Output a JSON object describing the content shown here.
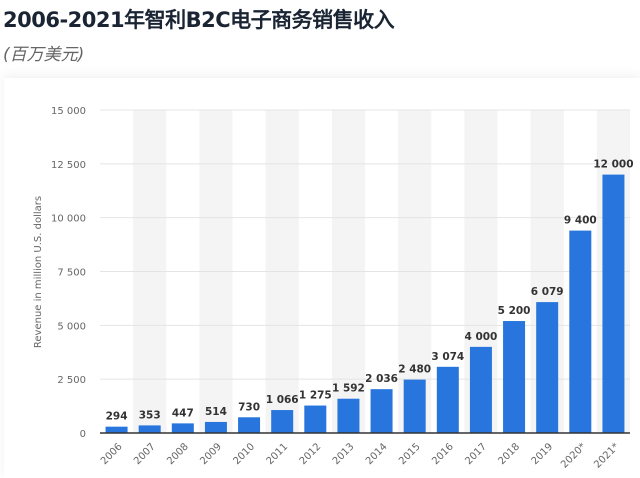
{
  "header": {
    "title": "2006-2021年智利B2C电子商务销售收入",
    "subtitle": "(百万美元)"
  },
  "chart_data": {
    "type": "bar",
    "title": "2006-2021年智利B2C电子商务销售收入",
    "subtitle": "(百万美元)",
    "xlabel": "",
    "ylabel": "Revenue in million U.S. dollars",
    "ylim": [
      0,
      15000
    ],
    "yticks": [
      0,
      2500,
      5000,
      7500,
      10000,
      12500,
      15000
    ],
    "ytick_labels": [
      "0",
      "2 500",
      "5 000",
      "7 500",
      "10 000",
      "12 500",
      "15 000"
    ],
    "categories": [
      "2006",
      "2007",
      "2008",
      "2009",
      "2010",
      "2011",
      "2012",
      "2013",
      "2014",
      "2015",
      "2016",
      "2017",
      "2018",
      "2019",
      "2020*",
      "2021*"
    ],
    "values": [
      294,
      353,
      447,
      514,
      730,
      1066,
      1275,
      1592,
      2036,
      2480,
      3074,
      4000,
      5200,
      6079,
      9400,
      12000
    ],
    "value_labels": [
      "294",
      "353",
      "447",
      "514",
      "730",
      "1 066",
      "1 275",
      "1 592",
      "2 036",
      "2 480",
      "3 074",
      "4 000",
      "5 200",
      "6 079",
      "9 400",
      "12 000"
    ],
    "bar_color": "#2876dd",
    "grid": true,
    "legend": "none"
  }
}
